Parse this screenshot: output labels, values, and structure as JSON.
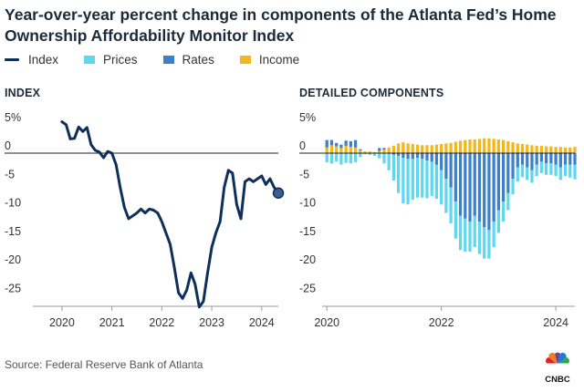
{
  "header": {
    "title": "Year-over-year percent change in components of the Atlanta Fed’s Home Ownership Affordability Monitor Index"
  },
  "legend": [
    {
      "label": "Index",
      "color": "#0e2f5a",
      "kind": "line"
    },
    {
      "label": "Prices",
      "color": "#5fd7ee",
      "kind": "box"
    },
    {
      "label": "Rates",
      "color": "#3d7fc8",
      "kind": "box"
    },
    {
      "label": "Income",
      "color": "#f2b71c",
      "kind": "box"
    }
  ],
  "panels": {
    "left_title": "INDEX",
    "right_title": "DETAILED COMPONENTS"
  },
  "footer": {
    "source": "Source: Federal Reserve Bank of Atlanta",
    "logo_text": "CNBC"
  },
  "chart_data": [
    {
      "type": "line",
      "title": "INDEX",
      "xlabel": "",
      "ylabel": "",
      "x_ticks": [
        "2020",
        "2021",
        "2022",
        "2023",
        "2024"
      ],
      "y_ticks": [
        "5%",
        "0",
        "-5",
        "-10",
        "-15",
        "-20",
        "-25"
      ],
      "ylim": [
        -27,
        6
      ],
      "xlim": [
        "2019-06",
        "2024-05"
      ],
      "grid": "zero line only",
      "series": [
        {
          "name": "Index",
          "color": "#0e2f5a",
          "x": [
            "2020-01",
            "2020-02",
            "2020-03",
            "2020-04",
            "2020-05",
            "2020-06",
            "2020-07",
            "2020-08",
            "2020-09",
            "2020-10",
            "2020-11",
            "2020-12",
            "2021-01",
            "2021-02",
            "2021-03",
            "2021-04",
            "2021-05",
            "2021-06",
            "2021-07",
            "2021-08",
            "2021-09",
            "2021-10",
            "2021-11",
            "2021-12",
            "2022-01",
            "2022-02",
            "2022-03",
            "2022-04",
            "2022-05",
            "2022-06",
            "2022-07",
            "2022-08",
            "2022-09",
            "2022-10",
            "2022-11",
            "2022-12",
            "2023-01",
            "2023-02",
            "2023-03",
            "2023-04",
            "2023-05",
            "2023-06",
            "2023-07",
            "2023-08",
            "2023-09",
            "2023-10",
            "2023-11",
            "2023-12",
            "2024-01",
            "2024-02",
            "2024-03",
            "2024-04",
            "2024-05"
          ],
          "y": [
            5.5,
            5.0,
            2.5,
            2.6,
            4.6,
            3.8,
            4.5,
            1.5,
            0.5,
            0.2,
            -0.8,
            0.3,
            0.0,
            -2.0,
            -6.0,
            -9.5,
            -11.5,
            -11.0,
            -10.5,
            -9.8,
            -10.5,
            -9.8,
            -10.0,
            -10.5,
            -12.0,
            -14.0,
            -16.0,
            -20.0,
            -24.5,
            -25.5,
            -24.0,
            -21.0,
            -23.0,
            -27.0,
            -26.0,
            -21.0,
            -16.5,
            -14.0,
            -12.0,
            -6.0,
            -3.0,
            -3.5,
            -9.0,
            -11.5,
            -5.0,
            -4.5,
            -5.0,
            -4.5,
            -4.0,
            -5.5,
            -4.5,
            -6.0,
            -7.0
          ]
        }
      ]
    },
    {
      "type": "bar",
      "stacked": true,
      "title": "DETAILED COMPONENTS",
      "xlabel": "",
      "ylabel": "",
      "x_ticks": [
        "2020",
        "2022",
        "2024"
      ],
      "y_ticks": [
        "5%",
        "0",
        "-5",
        "-10",
        "-15",
        "-20",
        "-25"
      ],
      "ylim": [
        -27,
        6
      ],
      "xlim": [
        "2019-12",
        "2024-05"
      ],
      "grid": "zero line only",
      "categories": [
        "2020-01",
        "2020-02",
        "2020-03",
        "2020-04",
        "2020-05",
        "2020-06",
        "2020-07",
        "2020-08",
        "2020-09",
        "2020-10",
        "2020-11",
        "2020-12",
        "2021-01",
        "2021-02",
        "2021-03",
        "2021-04",
        "2021-05",
        "2021-06",
        "2021-07",
        "2021-08",
        "2021-09",
        "2021-10",
        "2021-11",
        "2021-12",
        "2022-01",
        "2022-02",
        "2022-03",
        "2022-04",
        "2022-05",
        "2022-06",
        "2022-07",
        "2022-08",
        "2022-09",
        "2022-10",
        "2022-11",
        "2022-12",
        "2023-01",
        "2023-02",
        "2023-03",
        "2023-04",
        "2023-05",
        "2023-06",
        "2023-07",
        "2023-08",
        "2023-09",
        "2023-10",
        "2023-11",
        "2023-12",
        "2024-01",
        "2024-02",
        "2024-03",
        "2024-04",
        "2024-05"
      ],
      "series": [
        {
          "name": "Income",
          "color": "#f2b71c",
          "values": [
            1.0,
            1.4,
            1.2,
            0.9,
            1.3,
            1.1,
            1.0,
            0.5,
            0.3,
            0.3,
            0.2,
            0.4,
            0.6,
            1.0,
            1.3,
            1.7,
            1.9,
            1.7,
            1.6,
            1.5,
            1.4,
            1.4,
            1.4,
            1.5,
            1.6,
            1.7,
            1.8,
            2.0,
            2.2,
            2.3,
            2.4,
            2.4,
            2.5,
            2.6,
            2.6,
            2.5,
            2.4,
            2.3,
            2.1,
            1.9,
            1.7,
            1.6,
            1.5,
            1.4,
            1.3,
            1.3,
            1.2,
            1.2,
            1.1,
            1.1,
            1.0,
            1.0,
            1.1
          ]
        },
        {
          "name": "Rates",
          "color": "#3d7fc8",
          "values": [
            1.3,
            0.9,
            0.6,
            0.6,
            0.9,
            1.0,
            1.3,
            0.2,
            0.0,
            0.0,
            0.0,
            0.5,
            0.3,
            0.0,
            -0.3,
            -0.5,
            -0.8,
            -1.0,
            -1.0,
            -0.8,
            -1.0,
            -1.3,
            -1.5,
            -2.0,
            -3.0,
            -4.5,
            -6.0,
            -8.5,
            -11.0,
            -11.5,
            -12.0,
            -11.0,
            -12.0,
            -13.0,
            -13.5,
            -12.0,
            -10.0,
            -8.5,
            -7.0,
            -4.5,
            -2.5,
            -2.0,
            -2.5,
            -3.0,
            -2.0,
            -1.5,
            -1.8,
            -1.8,
            -2.0,
            -2.5,
            -2.0,
            -2.0,
            -2.0
          ]
        },
        {
          "name": "Prices",
          "color": "#5fd7ee",
          "values": [
            -1.6,
            -1.8,
            -1.5,
            -2.0,
            -1.7,
            -1.8,
            -1.6,
            -0.7,
            -0.2,
            -0.3,
            -0.5,
            -0.9,
            -1.8,
            -3.0,
            -4.5,
            -6.5,
            -8.0,
            -8.0,
            -7.2,
            -7.0,
            -6.8,
            -6.6,
            -6.0,
            -6.0,
            -6.0,
            -6.0,
            -6.3,
            -6.5,
            -6.0,
            -5.8,
            -5.3,
            -5.5,
            -5.7,
            -5.5,
            -5.0,
            -4.5,
            -4.0,
            -3.5,
            -3.0,
            -2.7,
            -2.5,
            -2.2,
            -2.2,
            -2.2,
            -2.0,
            -2.0,
            -2.0,
            -2.0,
            -2.0,
            -2.2,
            -2.0,
            -2.3,
            -2.6
          ]
        }
      ]
    }
  ]
}
